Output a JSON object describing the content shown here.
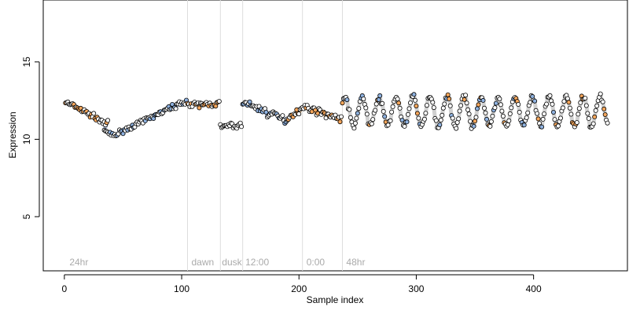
{
  "chart_data": {
    "type": "scatter",
    "xlabel": "Sample index",
    "ylabel": "Expression",
    "xlim": [
      -18,
      480
    ],
    "ylim": [
      1.5,
      19
    ],
    "x_ticks": [
      0,
      100,
      200,
      300,
      400
    ],
    "y_ticks": [
      5,
      10,
      15
    ],
    "grid": false,
    "region_boundaries": [
      105,
      133,
      152,
      203,
      237
    ],
    "region_labels": [
      {
        "text": "24hr",
        "x": 3
      },
      {
        "text": "dawn",
        "x": 107
      },
      {
        "text": "dusk",
        "x": 133
      },
      {
        "text": "12:00",
        "x": 153
      },
      {
        "text": "0:00",
        "x": 205
      },
      {
        "text": "48hr",
        "x": 239
      }
    ],
    "colors": {
      "point_fill_default": "#ffffff",
      "point_fill_orange": "#f5a65b",
      "point_fill_blue": "#8fb2e0",
      "line_orange": "#f0c08a",
      "line_blue": "#a9c0e6",
      "line_gray": "#bdbdbd",
      "boundary": "#dddddd"
    },
    "segments": [
      {
        "x0": 1,
        "x1": 37,
        "y_start": 12.4,
        "y_end": 11.0,
        "noise": 0.18,
        "trend": "linear",
        "color": "orange"
      },
      {
        "x0": 34,
        "x1": 45,
        "y_start": 10.6,
        "y_end": 10.3,
        "noise": 0.15,
        "trend": "dip",
        "color": "blue"
      },
      {
        "x0": 46,
        "x1": 104,
        "y_start": 10.4,
        "y_end": 12.5,
        "noise": 0.15,
        "trend": "linear",
        "color": "blue"
      },
      {
        "x0": 105,
        "x1": 132,
        "y_start": 12.2,
        "y_end": 12.3,
        "noise": 0.2,
        "trend": "linear",
        "color": "orange"
      },
      {
        "x0": 133,
        "x1": 151,
        "y_start": 10.8,
        "y_end": 10.9,
        "noise": 0.2,
        "trend": "linear",
        "color": "gray"
      },
      {
        "x0": 152,
        "x1": 190,
        "y_start": 12.4,
        "y_end": 11.2,
        "noise": 0.25,
        "trend": "linear",
        "color": "blue"
      },
      {
        "x0": 190,
        "x1": 203,
        "y_start": 11.4,
        "y_end": 12.0,
        "noise": 0.2,
        "trend": "linear",
        "color": "orange"
      },
      {
        "x0": 204,
        "x1": 236,
        "y_start": 12.1,
        "y_end": 11.3,
        "noise": 0.2,
        "trend": "linear",
        "color": "orange"
      },
      {
        "x0": 237,
        "x1": 463,
        "y_mean": 11.8,
        "amplitude": 0.95,
        "period": 14.5,
        "noise": 0.2,
        "trend": "oscillation",
        "color": "mixed"
      }
    ]
  }
}
